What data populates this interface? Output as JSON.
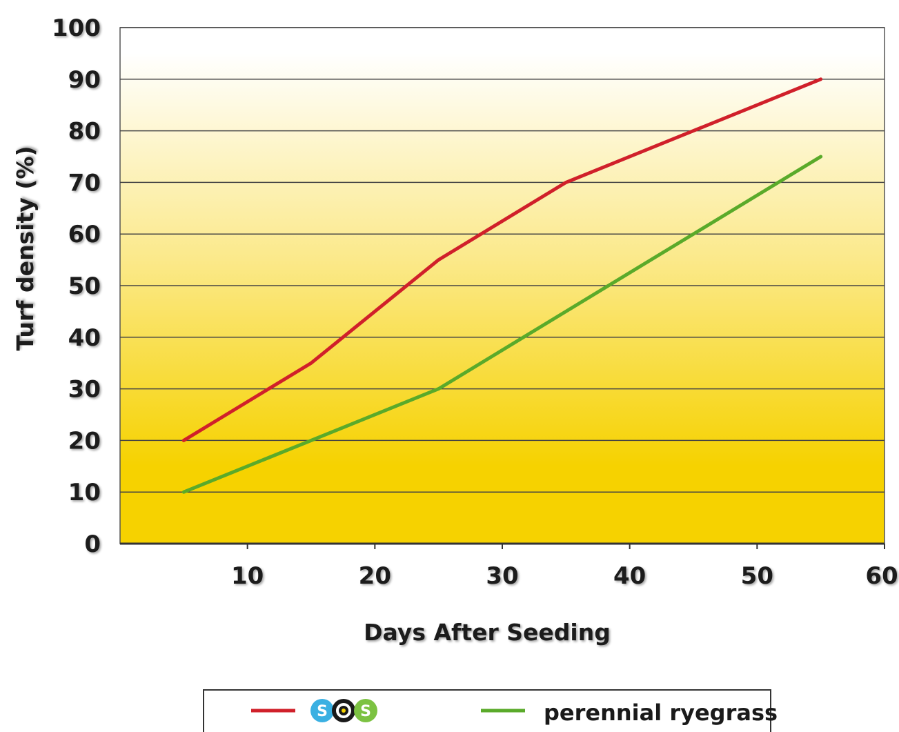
{
  "chart_data": {
    "type": "line",
    "title": "",
    "xlabel": "Days After Seeding",
    "ylabel": "Turf density (%)",
    "xlim": [
      0,
      60
    ],
    "ylim": [
      0,
      100
    ],
    "x_ticks": [
      10,
      20,
      30,
      40,
      50,
      60
    ],
    "y_ticks": [
      0,
      10,
      20,
      30,
      40,
      50,
      60,
      70,
      80,
      90,
      100
    ],
    "grid": "horizontal",
    "legend_position": "bottom-center",
    "series": [
      {
        "name": "SOS",
        "color": "#d0202a",
        "x": [
          5,
          15,
          25,
          35,
          45,
          55
        ],
        "y": [
          20,
          35,
          55,
          70,
          80,
          90
        ]
      },
      {
        "name": "perennial ryegrass",
        "color": "#5aaa2a",
        "x": [
          5,
          15,
          25,
          35,
          45,
          55
        ],
        "y": [
          10,
          20,
          30,
          45,
          60,
          75
        ]
      }
    ]
  },
  "legend": {
    "sos_logo": {
      "letters": [
        "S",
        "O",
        "S"
      ],
      "colors": [
        "#3ab0e2",
        "#1a1a1a",
        "#7cc242"
      ],
      "icon": "sos-logo-icon"
    }
  },
  "colors": {
    "plot_top": "#ffffff",
    "plot_bottom": "#f6d200",
    "gridline": "#444444"
  }
}
